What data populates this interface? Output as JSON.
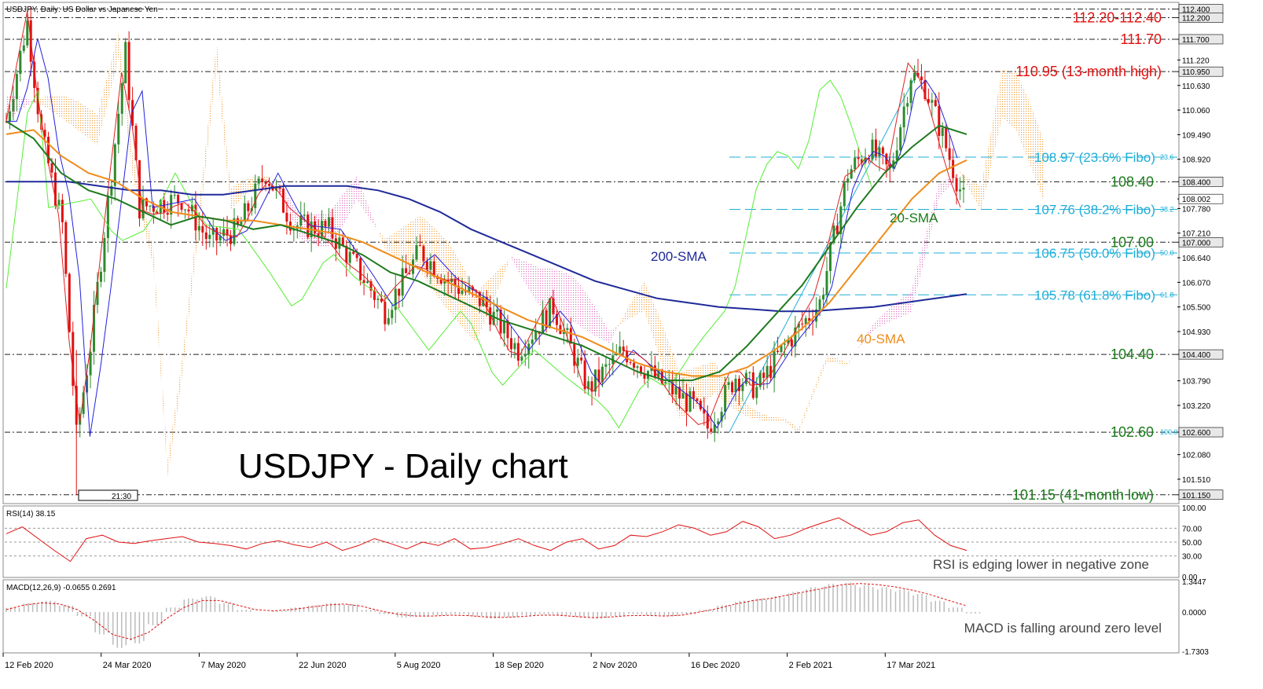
{
  "header": {
    "symbol_label": "USDJPY, Daily:  US Dollar vs Japanese Yen"
  },
  "main_title": "USDJPY - Daily chart",
  "time_box": "21:30",
  "colors": {
    "bull": "#2e8b2e",
    "bear": "#e01010",
    "sma20": "#1f7a1f",
    "sma40": "#f08c1a",
    "sma200": "#1f2a99",
    "tenkan": "#e02020",
    "kijun": "#2222dd",
    "chikou": "#55ee33",
    "fibo": "#1eaed8",
    "level_red": "#e01010",
    "level_green": "#1a7a1a"
  },
  "chart_data": [
    {
      "type": "line",
      "subtype": "candlestick",
      "title": "USDJPY - Daily chart",
      "x_tick_labels": [
        "12 Feb 2020",
        "24 Mar 2020",
        "7 May 2020",
        "22 Jun 2020",
        "5 Aug 2020",
        "18 Sep 2020",
        "2 Nov 2020",
        "16 Dec 2020",
        "2 Feb 2021",
        "17 Mar 2021"
      ],
      "y_tick_labels": [
        "112.400",
        "112.200",
        "111.700",
        "111.220",
        "110.950",
        "110.630",
        "110.060",
        "109.490",
        "108.920",
        "108.400",
        "108.002",
        "107.780",
        "107.210",
        "107.000",
        "106.640",
        "106.070",
        "105.500",
        "104.930",
        "104.400",
        "103.790",
        "103.220",
        "102.600",
        "102.080",
        "101.510",
        "101.150"
      ],
      "ylim": [
        101.0,
        112.5
      ],
      "series": [
        {
          "name": "20-SMA",
          "values": [
            109.8,
            109.4,
            108.6,
            108.2,
            108.0,
            107.7,
            107.4,
            107.6,
            107.5,
            107.3,
            107.4,
            107.2,
            107.0,
            106.7,
            106.3,
            106.1,
            105.8,
            105.5,
            105.2,
            105.0,
            104.8,
            104.6,
            104.3,
            104.0,
            103.8,
            103.8,
            104.0,
            104.6,
            105.3,
            106.0,
            106.9,
            107.8,
            108.6,
            109.2,
            109.7,
            109.5
          ]
        },
        {
          "name": "40-SMA",
          "values": [
            109.5,
            109.6,
            109.0,
            108.6,
            108.4,
            108.0,
            107.7,
            107.6,
            107.5,
            107.5,
            107.4,
            107.3,
            107.2,
            107.0,
            106.7,
            106.4,
            106.1,
            105.8,
            105.5,
            105.2,
            105.0,
            104.8,
            104.5,
            104.2,
            104.0,
            103.9,
            103.9,
            104.1,
            104.5,
            105.0,
            105.6,
            106.4,
            107.2,
            108.0,
            108.6,
            108.9
          ]
        },
        {
          "name": "200-SMA",
          "values": [
            108.4,
            108.4,
            108.4,
            108.3,
            108.2,
            108.2,
            108.1,
            108.1,
            108.2,
            108.3,
            108.3,
            108.3,
            108.2,
            108.0,
            107.7,
            107.3,
            107.0,
            106.7,
            106.4,
            106.1,
            105.9,
            105.7,
            105.6,
            105.5,
            105.45,
            105.4,
            105.4,
            105.45,
            105.5,
            105.6,
            105.7,
            105.8
          ]
        }
      ],
      "annotations": [
        {
          "label": "200-SMA",
          "color": "#1f2a99"
        },
        {
          "label": "20-SMA",
          "color": "#1a7a1a"
        },
        {
          "label": "40-SMA",
          "color": "#f08c1a"
        }
      ],
      "levels": [
        {
          "label": "112.20-112.40",
          "price": 112.2,
          "color": "#e01010"
        },
        {
          "label": "111.70",
          "price": 111.7,
          "color": "#e01010"
        },
        {
          "label": "110.95 (13-month high)",
          "price": 110.95,
          "color": "#e01010"
        },
        {
          "label": "108.97 (23.6% Fibo)",
          "price": 108.97,
          "color": "#1eaed8",
          "tag": "23.6"
        },
        {
          "label": "108.40",
          "price": 108.4,
          "color": "#1a7a1a"
        },
        {
          "label": "107.76 (38.2% Fibo)",
          "price": 107.76,
          "color": "#1eaed8",
          "tag": "38.2"
        },
        {
          "label": "107.00",
          "price": 107.0,
          "color": "#1a7a1a"
        },
        {
          "label": "106.75 (50.0% Fibo)",
          "price": 106.75,
          "color": "#1eaed8",
          "tag": "50.0"
        },
        {
          "label": "105.78 (61.8% Fibo)",
          "price": 105.78,
          "color": "#1eaed8",
          "tag": "61.8"
        },
        {
          "label": "104.40",
          "price": 104.4,
          "color": "#1a7a1a"
        },
        {
          "label": "102.60",
          "price": 102.6,
          "color": "#1a7a1a",
          "tag": "100.0"
        },
        {
          "label": "101.15 (41-month low)",
          "price": 101.15,
          "color": "#1a7a1a"
        }
      ],
      "last_price": "108.002"
    },
    {
      "type": "line",
      "title": "RSI(14) 38.15",
      "ylim": [
        0,
        100
      ],
      "y_tick_labels": [
        "100.00",
        "70.00",
        "50.00",
        "30.00",
        "0.00"
      ],
      "series": [
        {
          "name": "RSI(14)",
          "values": [
            62,
            72,
            55,
            38,
            22,
            55,
            60,
            50,
            48,
            52,
            55,
            58,
            50,
            48,
            45,
            40,
            48,
            52,
            46,
            42,
            50,
            38,
            45,
            55,
            48,
            40,
            50,
            45,
            55,
            40,
            42,
            48,
            55,
            45,
            38,
            50,
            55,
            40,
            45,
            60,
            58,
            65,
            75,
            70,
            60,
            65,
            80,
            72,
            55,
            60,
            70,
            78,
            85,
            72,
            60,
            65,
            78,
            82,
            60,
            45,
            38
          ]
        }
      ],
      "annotation": "RSI is edging lower in negative zone"
    },
    {
      "type": "bar",
      "title": "MACD(12,26,9) -0.0655 0.2691",
      "y_tick_labels": [
        "1.3447",
        "0.0000",
        "-1.7303"
      ],
      "ylim": [
        -1.7303,
        1.3447
      ],
      "series": [
        {
          "name": "MACD histogram",
          "values": [
            0.2,
            0.4,
            0.5,
            0.3,
            -0.2,
            -1.0,
            -1.6,
            -1.4,
            -0.6,
            0.2,
            0.6,
            0.7,
            0.4,
            0.1,
            0.0,
            0.05,
            0.2,
            0.3,
            0.4,
            0.35,
            0.1,
            -0.1,
            -0.25,
            -0.2,
            -0.15,
            -0.1,
            -0.2,
            -0.3,
            -0.25,
            -0.15,
            -0.1,
            -0.15,
            -0.25,
            -0.3,
            -0.2,
            -0.1,
            -0.15,
            -0.2,
            -0.1,
            0.1,
            0.3,
            0.5,
            0.6,
            0.7,
            0.9,
            1.1,
            1.25,
            1.3,
            1.2,
            1.1,
            1.0,
            0.8,
            0.5,
            0.2,
            -0.07
          ]
        },
        {
          "name": "Signal",
          "values": [
            0.1,
            0.3,
            0.4,
            0.35,
            0.1,
            -0.4,
            -1.0,
            -1.2,
            -0.9,
            -0.3,
            0.2,
            0.5,
            0.5,
            0.3,
            0.1,
            0.05,
            0.1,
            0.2,
            0.3,
            0.35,
            0.25,
            0.05,
            -0.1,
            -0.18,
            -0.18,
            -0.14,
            -0.16,
            -0.22,
            -0.24,
            -0.2,
            -0.14,
            -0.14,
            -0.2,
            -0.25,
            -0.22,
            -0.16,
            -0.15,
            -0.18,
            -0.14,
            0.0,
            0.15,
            0.35,
            0.5,
            0.6,
            0.75,
            0.9,
            1.05,
            1.2,
            1.25,
            1.2,
            1.1,
            0.95,
            0.75,
            0.5,
            0.27
          ]
        }
      ],
      "annotation": "MACD is falling around zero level"
    }
  ]
}
